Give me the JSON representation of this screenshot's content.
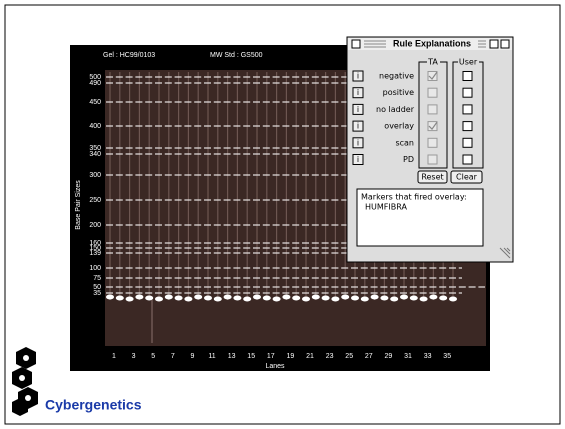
{
  "gel": {
    "gel_label": "Gel : HC99/0103",
    "mw_std": "MW Std : GS500",
    "y_axis_title": "Base Pair Sizes",
    "y_labels": [
      500,
      490,
      450,
      400,
      350,
      340,
      300,
      250,
      200,
      160,
      150,
      139,
      100,
      75,
      50,
      35
    ],
    "x_axis_title": "Lanes",
    "x_labels": [
      1,
      3,
      5,
      7,
      9,
      11,
      13,
      15,
      17,
      19,
      21,
      23,
      25,
      27,
      29,
      31,
      33,
      35
    ]
  },
  "dialog": {
    "title": "Rule Explanations",
    "info_label": "i",
    "ta_header": "TA",
    "user_header": "User",
    "rules": [
      {
        "label": "negative",
        "ta_checked": true
      },
      {
        "label": "positive",
        "ta_checked": false
      },
      {
        "label": "no ladder",
        "ta_checked": false
      },
      {
        "label": "overlay",
        "ta_checked": true
      },
      {
        "label": "scan",
        "ta_checked": false
      },
      {
        "label": "PD",
        "ta_checked": false
      }
    ],
    "reset": "Reset",
    "clear": "Clear",
    "message_lines": [
      "Markers that fired overlay:",
      "HUMFIBRA"
    ]
  },
  "brand": "Cybergenetics"
}
